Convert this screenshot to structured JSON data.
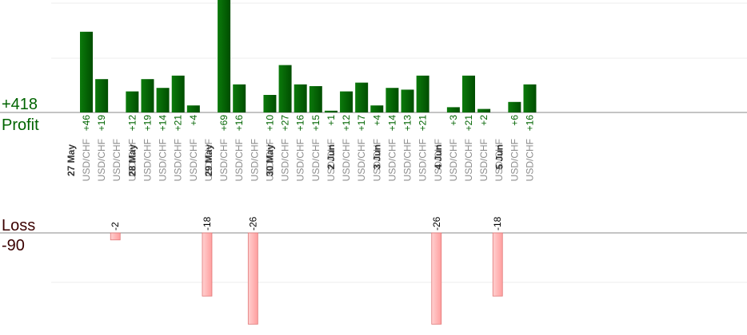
{
  "chart_data": {
    "type": "bar",
    "profit_total": "+418",
    "profit_label": "Profit",
    "loss_label": "Loss",
    "loss_total": "-90",
    "columns": [
      {
        "date": "27 May",
        "symbol": "USD/CHF",
        "value": 46
      },
      {
        "date": "",
        "symbol": "USD/CHF",
        "value": 19
      },
      {
        "date": "",
        "symbol": "USD/CHF",
        "value": -2
      },
      {
        "date": "",
        "symbol": "USD/CHF",
        "value": 12
      },
      {
        "date": "28 May",
        "symbol": "USD/CHF",
        "value": 19
      },
      {
        "date": "",
        "symbol": "USD/CHF",
        "value": 14
      },
      {
        "date": "",
        "symbol": "USD/CHF",
        "value": 21
      },
      {
        "date": "",
        "symbol": "USD/CHF",
        "value": 4
      },
      {
        "date": "",
        "symbol": "USD/CHF",
        "value": -18
      },
      {
        "date": "29 May",
        "symbol": "USD/CHF",
        "value": 69
      },
      {
        "date": "",
        "symbol": "USD/CHF",
        "value": 16
      },
      {
        "date": "",
        "symbol": "USD/CHF",
        "value": -26
      },
      {
        "date": "",
        "symbol": "USD/CHF",
        "value": 10
      },
      {
        "date": "30 May",
        "symbol": "USD/CHF",
        "value": 27
      },
      {
        "date": "",
        "symbol": "USD/CHF",
        "value": 16
      },
      {
        "date": "",
        "symbol": "USD/CHF",
        "value": 15
      },
      {
        "date": "",
        "symbol": "USD/CHF",
        "value": 1
      },
      {
        "date": "2 Jun",
        "symbol": "USD/CHF",
        "value": 12
      },
      {
        "date": "",
        "symbol": "USD/CHF",
        "value": 17
      },
      {
        "date": "",
        "symbol": "USD/CHF",
        "value": 4
      },
      {
        "date": "3 Jun",
        "symbol": "USD/CHF",
        "value": 14
      },
      {
        "date": "",
        "symbol": "USD/CHF",
        "value": 13
      },
      {
        "date": "",
        "symbol": "USD/CHF",
        "value": 21
      },
      {
        "date": "",
        "symbol": "USD/CHF",
        "value": -26
      },
      {
        "date": "4 Jun",
        "symbol": "USD/CHF",
        "value": 3
      },
      {
        "date": "",
        "symbol": "USD/CHF",
        "value": 21
      },
      {
        "date": "",
        "symbol": "USD/CHF",
        "value": 2
      },
      {
        "date": "",
        "symbol": "USD/CHF",
        "value": -18
      },
      {
        "date": "5 Jun",
        "symbol": "USD/CHF",
        "value": 6
      },
      {
        "date": "",
        "symbol": "USD/CHF",
        "value": 16
      }
    ],
    "colors": {
      "profit_bar": "#006400",
      "profit_text": "#006400",
      "loss_bar": "#ffb3b3",
      "loss_bar_border": "#e07878",
      "loss_text": "#3b0000",
      "grid": "#eeeeee",
      "axis": "#888888"
    }
  }
}
